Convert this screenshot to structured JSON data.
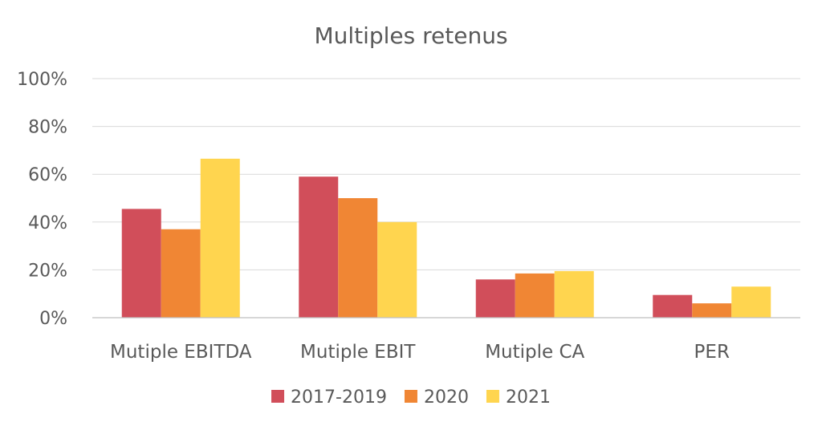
{
  "chart_data": {
    "type": "bar",
    "title": "Multiples retenus",
    "xlabel": "",
    "ylabel": "",
    "ylim": [
      0,
      1
    ],
    "yticks": [
      {
        "value": 0,
        "label": "0%"
      },
      {
        "value": 0.2,
        "label": "20%"
      },
      {
        "value": 0.4,
        "label": "40%"
      },
      {
        "value": 0.6,
        "label": "60%"
      },
      {
        "value": 0.8,
        "label": "80%"
      },
      {
        "value": 1.0,
        "label": "100%"
      }
    ],
    "categories": [
      "Mutiple EBITDA",
      "Mutiple EBIT",
      "Mutiple CA",
      "PER"
    ],
    "series": [
      {
        "name": "2017-2019",
        "color": "#d14e5a",
        "values": [
          0.455,
          0.59,
          0.16,
          0.095
        ]
      },
      {
        "name": "2020",
        "color": "#f08634",
        "values": [
          0.37,
          0.5,
          0.185,
          0.06
        ]
      },
      {
        "name": "2021",
        "color": "#ffd54f",
        "values": [
          0.665,
          0.4,
          0.195,
          0.13
        ]
      }
    ],
    "grid": true,
    "legend_position": "bottom"
  }
}
